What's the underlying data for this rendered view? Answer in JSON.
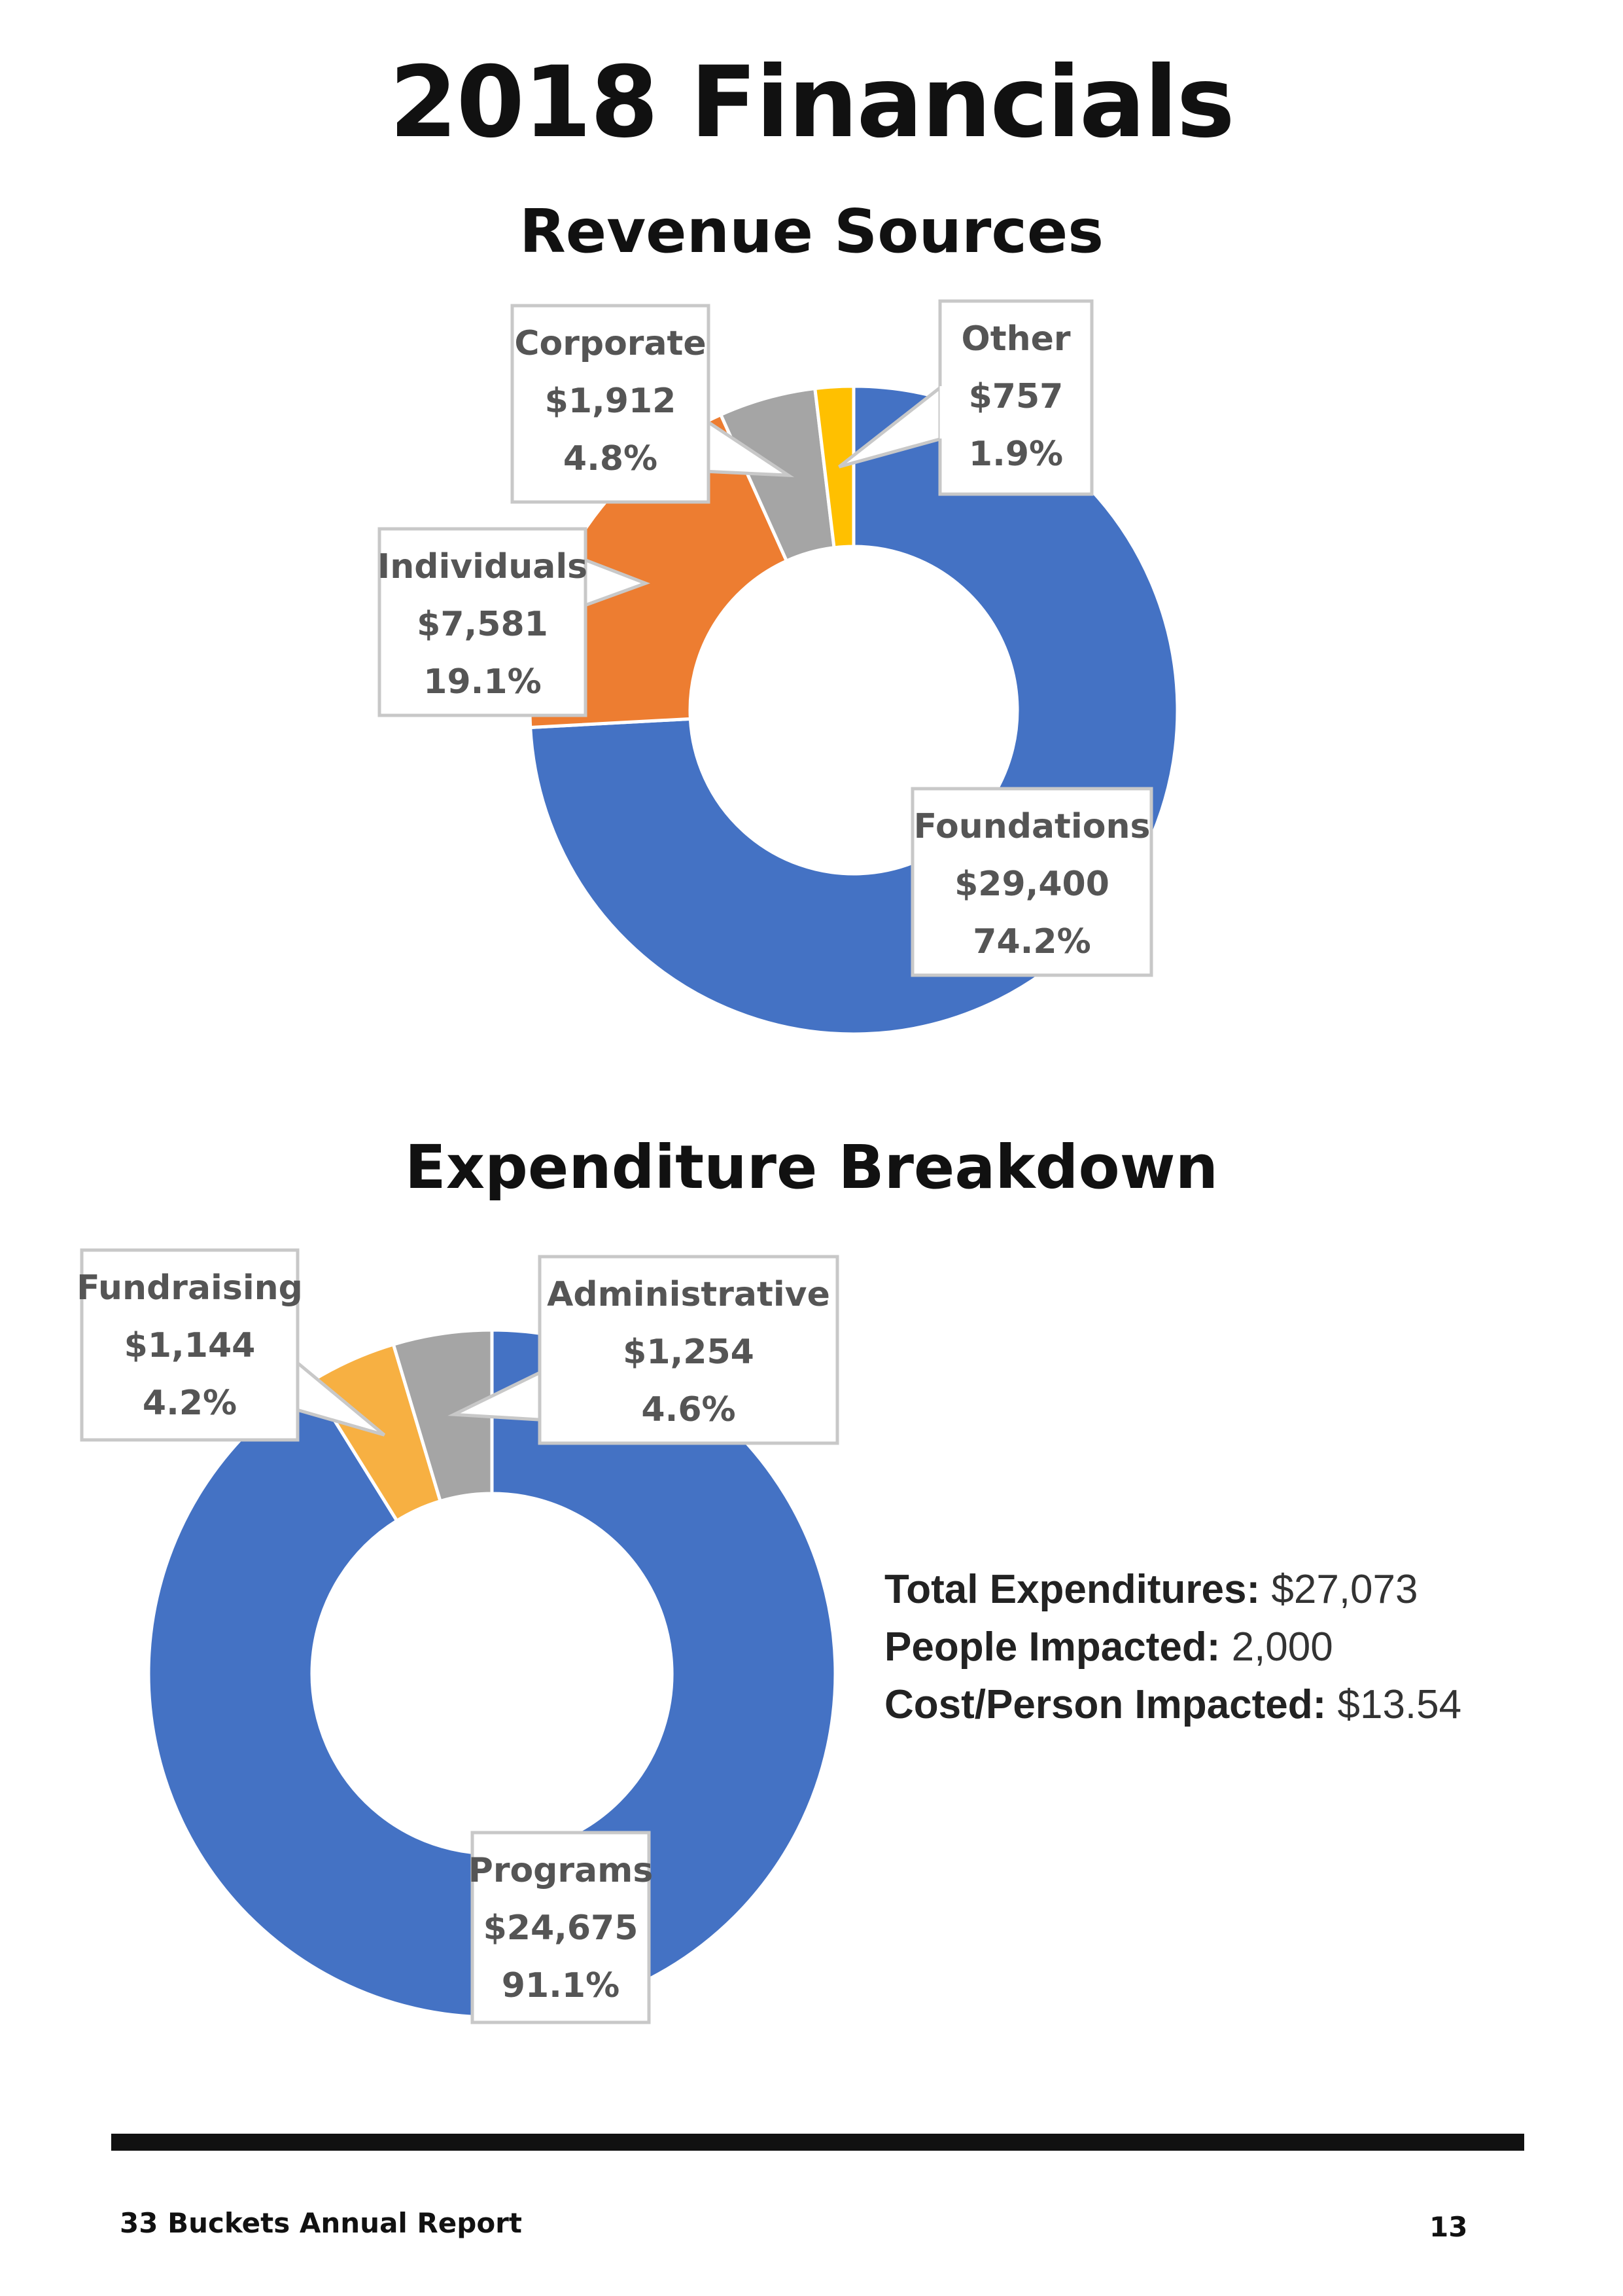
{
  "page": {
    "title": "2018 Financials",
    "footer_left": "33 Buckets Annual Report",
    "footer_right": "13"
  },
  "stats": [
    {
      "label": "Total Expenditures:",
      "value": "$27,073"
    },
    {
      "label": "People Impacted:",
      "value": "2,000"
    },
    {
      "label": "Cost/Person Impacted:",
      "value": "$13.54"
    }
  ],
  "chart_data": [
    {
      "type": "pie",
      "variant": "donut",
      "title": "Revenue Sources",
      "slices": [
        {
          "label": "Foundations",
          "value": 29400,
          "value_label": "$29,400",
          "percent": "74.2%",
          "color": "#4472C4"
        },
        {
          "label": "Individuals",
          "value": 7581,
          "value_label": "$7,581",
          "percent": "19.1%",
          "color": "#ED7D31"
        },
        {
          "label": "Corporate",
          "value": 1912,
          "value_label": "$1,912",
          "percent": "4.8%",
          "color": "#A5A5A5"
        },
        {
          "label": "Other",
          "value": 757,
          "value_label": "$757",
          "percent": "1.9%",
          "color": "#FFC000"
        }
      ],
      "start_angle_deg": 0,
      "direction": "clockwise"
    },
    {
      "type": "pie",
      "variant": "donut",
      "title": "Expenditure Breakdown",
      "slices": [
        {
          "label": "Programs",
          "value": 24675,
          "value_label": "$24,675",
          "percent": "91.1%",
          "color": "#4472C4"
        },
        {
          "label": "Fundraising",
          "value": 1144,
          "value_label": "$1,144",
          "percent": "4.2%",
          "color": "#F7B042"
        },
        {
          "label": "Administrative",
          "value": 1254,
          "value_label": "$1,254",
          "percent": "4.6%",
          "color": "#A5A5A5"
        }
      ],
      "start_angle_deg": 0,
      "direction": "clockwise"
    }
  ]
}
